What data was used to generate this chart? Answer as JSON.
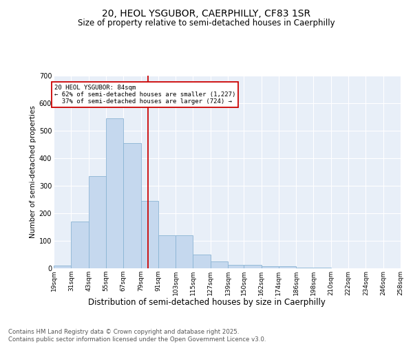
{
  "title": "20, HEOL YSGUBOR, CAERPHILLY, CF83 1SR",
  "subtitle": "Size of property relative to semi-detached houses in Caerphilly",
  "xlabel": "Distribution of semi-detached houses by size in Caerphilly",
  "ylabel": "Number of semi-detached properties",
  "bin_edges": [
    19,
    31,
    43,
    55,
    67,
    79,
    91,
    103,
    115,
    127,
    139,
    150,
    162,
    174,
    186,
    198,
    210,
    222,
    234,
    246,
    258
  ],
  "bin_labels": [
    "19sqm",
    "31sqm",
    "43sqm",
    "55sqm",
    "67sqm",
    "79sqm",
    "91sqm",
    "103sqm",
    "115sqm",
    "127sqm",
    "139sqm",
    "150sqm",
    "162sqm",
    "174sqm",
    "186sqm",
    "198sqm",
    "210sqm",
    "222sqm",
    "234sqm",
    "246sqm",
    "258sqm"
  ],
  "counts": [
    10,
    170,
    335,
    545,
    455,
    245,
    120,
    120,
    50,
    25,
    12,
    12,
    8,
    8,
    2,
    2,
    0,
    0,
    0,
    0
  ],
  "bar_color": "#c5d8ee",
  "bar_edge_color": "#8ab4d4",
  "property_size": 84,
  "vline_color": "#cc0000",
  "annotation_line1": "20 HEOL YSGUBOR: 84sqm",
  "annotation_line2": "← 62% of semi-detached houses are smaller (1,227)",
  "annotation_line3": "  37% of semi-detached houses are larger (724) →",
  "footer_text": "Contains HM Land Registry data © Crown copyright and database right 2025.\nContains public sector information licensed under the Open Government Licence v3.0.",
  "ylim_max": 700,
  "bg_color": "#e8eff8",
  "grid_color": "#ffffff",
  "fig_width": 6.0,
  "fig_height": 5.0,
  "dpi": 100
}
